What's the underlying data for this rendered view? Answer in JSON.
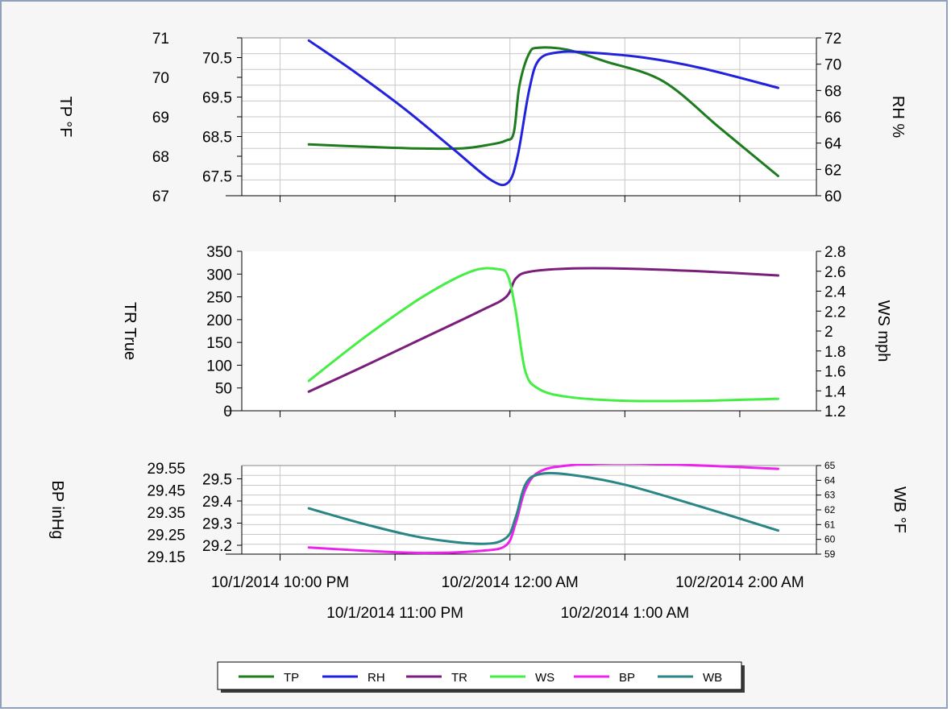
{
  "chart_data": [
    {
      "type": "line",
      "x_unit": "time",
      "left_axis": {
        "label": "TP °F",
        "ticks": [
          "71",
          "70.5",
          "70",
          "69.5",
          "69",
          "68.5",
          "68",
          "67.5",
          "67"
        ],
        "range": [
          67,
          71
        ]
      },
      "right_axis": {
        "label": "RH %",
        "ticks": [
          "72",
          "70",
          "68",
          "66",
          "64",
          "62",
          "60"
        ],
        "range": [
          60,
          72
        ]
      },
      "grid": true,
      "series": [
        {
          "name": "TP",
          "axis": "left",
          "color": "#1e7b1e",
          "x": [
            "10/1/2014 22:15",
            "10/1/2014 22:40",
            "10/1/2014 23:10",
            "10/1/2014 23:35",
            "10/1/2014 23:50",
            "10/1/2014 23:58",
            "10/2/2014 00:02",
            "10/2/2014 00:05",
            "10/2/2014 00:10",
            "10/2/2014 00:15",
            "10/2/2014 00:30",
            "10/2/2014 00:50",
            "10/2/2014 01:20",
            "10/2/2014 01:50",
            "10/2/2014 02:20"
          ],
          "y": [
            68.3,
            68.25,
            68.2,
            68.2,
            68.3,
            68.4,
            68.6,
            69.8,
            70.6,
            70.75,
            70.7,
            70.4,
            69.9,
            68.7,
            67.5
          ]
        },
        {
          "name": "RH",
          "axis": "right",
          "color": "#2222dd",
          "x": [
            "10/1/2014 22:15",
            "10/1/2014 22:40",
            "10/1/2014 23:05",
            "10/1/2014 23:30",
            "10/1/2014 23:50",
            "10/1/2014 23:59",
            "10/2/2014 00:04",
            "10/2/2014 00:10",
            "10/2/2014 00:15",
            "10/2/2014 00:25",
            "10/2/2014 00:40",
            "10/2/2014 01:10",
            "10/2/2014 01:40",
            "10/2/2014 02:20"
          ],
          "y": [
            71.8,
            69.3,
            66.6,
            63.6,
            61.2,
            61.0,
            63.0,
            68.0,
            70.3,
            70.9,
            70.9,
            70.5,
            69.7,
            68.2
          ]
        }
      ]
    },
    {
      "type": "line",
      "x_unit": "time",
      "left_axis": {
        "label": "TR True",
        "ticks": [
          "350",
          "300",
          "250",
          "200",
          "150",
          "100",
          "50",
          "0"
        ],
        "range": [
          0,
          350
        ]
      },
      "right_axis": {
        "label": "WS mph",
        "ticks": [
          "2.8",
          "2.6",
          "2.4",
          "2.2",
          "2",
          "1.8",
          "1.6",
          "1.4",
          "1.2"
        ],
        "range": [
          1.2,
          2.8
        ]
      },
      "grid": false,
      "series": [
        {
          "name": "TR",
          "axis": "left",
          "color": "#7b1e7b",
          "x": [
            "10/1/2014 22:15",
            "10/1/2014 22:45",
            "10/1/2014 23:15",
            "10/1/2014 23:45",
            "10/1/2014 23:58",
            "10/2/2014 00:03",
            "10/2/2014 00:10",
            "10/2/2014 00:30",
            "10/2/2014 01:00",
            "10/2/2014 01:40",
            "10/2/2014 02:20"
          ],
          "y": [
            42,
            100,
            160,
            220,
            250,
            290,
            305,
            312,
            312,
            306,
            297
          ]
        },
        {
          "name": "WS",
          "axis": "right",
          "color": "#44ee44",
          "x": [
            "10/1/2014 22:15",
            "10/1/2014 22:45",
            "10/1/2014 23:15",
            "10/1/2014 23:40",
            "10/1/2014 23:54",
            "10/1/2014 23:59",
            "10/2/2014 00:03",
            "10/2/2014 00:08",
            "10/2/2014 00:15",
            "10/2/2014 00:30",
            "10/2/2014 01:00",
            "10/2/2014 01:40",
            "10/2/2014 02:20"
          ],
          "y": [
            1.5,
            1.95,
            2.35,
            2.6,
            2.62,
            2.55,
            2.2,
            1.6,
            1.42,
            1.34,
            1.3,
            1.3,
            1.32
          ]
        }
      ]
    },
    {
      "type": "line",
      "x_unit": "time",
      "left_axis": {
        "label": "BP inHg",
        "ticks_major": [
          "29.5",
          "29.4",
          "29.3",
          "29.2"
        ],
        "ticks_minor": [
          "29.55",
          "29.45",
          "29.35",
          "29.25",
          "29.15"
        ],
        "range": [
          29.16,
          29.56
        ]
      },
      "right_axis": {
        "label": "WB °F",
        "ticks": [
          "65",
          "64",
          "63",
          "62",
          "61",
          "60",
          "59"
        ],
        "range": [
          59,
          65
        ]
      },
      "grid": true,
      "series": [
        {
          "name": "BP",
          "axis": "left",
          "color": "#ee22ee",
          "x": [
            "10/1/2014 22:15",
            "10/1/2014 22:45",
            "10/1/2014 23:15",
            "10/1/2014 23:45",
            "10/1/2014 23:58",
            "10/2/2014 00:03",
            "10/2/2014 00:08",
            "10/2/2014 00:15",
            "10/2/2014 00:30",
            "10/2/2014 01:00",
            "10/2/2014 01:40",
            "10/2/2014 02:20"
          ],
          "y": [
            29.19,
            29.175,
            29.165,
            29.175,
            29.2,
            29.3,
            29.45,
            29.53,
            29.56,
            29.57,
            29.56,
            29.545
          ]
        },
        {
          "name": "WB",
          "axis": "right",
          "color": "#2a8585",
          "x": [
            "10/1/2014 22:15",
            "10/1/2014 22:45",
            "10/1/2014 23:15",
            "10/1/2014 23:45",
            "10/1/2014 23:58",
            "10/2/2014 00:03",
            "10/2/2014 00:08",
            "10/2/2014 00:15",
            "10/2/2014 00:30",
            "10/2/2014 01:00",
            "10/2/2014 01:40",
            "10/2/2014 02:20"
          ],
          "y": [
            62.1,
            61.0,
            60.1,
            59.7,
            60.1,
            61.5,
            63.7,
            64.4,
            64.4,
            63.7,
            62.2,
            60.6
          ]
        }
      ]
    }
  ],
  "x_axis": {
    "range": [
      "10/1/2014 21:40",
      "10/2/2014 02:40"
    ],
    "tick_labels": [
      {
        "time": "10/1/2014 22:00",
        "label": "10/1/2014 10:00 PM",
        "row": 1
      },
      {
        "time": "10/1/2014 23:00",
        "label": "10/1/2014 11:00 PM",
        "row": 2
      },
      {
        "time": "10/2/2014 00:00",
        "label": "10/2/2014 12:00 AM",
        "row": 1
      },
      {
        "time": "10/2/2014 01:00",
        "label": "10/2/2014 1:00 AM",
        "row": 2
      },
      {
        "time": "10/2/2014 02:00",
        "label": "10/2/2014 2:00 AM",
        "row": 1
      }
    ]
  },
  "legend": {
    "position": "bottom-center",
    "items": [
      {
        "name": "TP",
        "color": "#1e7b1e"
      },
      {
        "name": "RH",
        "color": "#2222dd"
      },
      {
        "name": "TR",
        "color": "#7b1e7b"
      },
      {
        "name": "WS",
        "color": "#44ee44"
      },
      {
        "name": "BP",
        "color": "#ee22ee"
      },
      {
        "name": "WB",
        "color": "#2a8585"
      }
    ]
  }
}
